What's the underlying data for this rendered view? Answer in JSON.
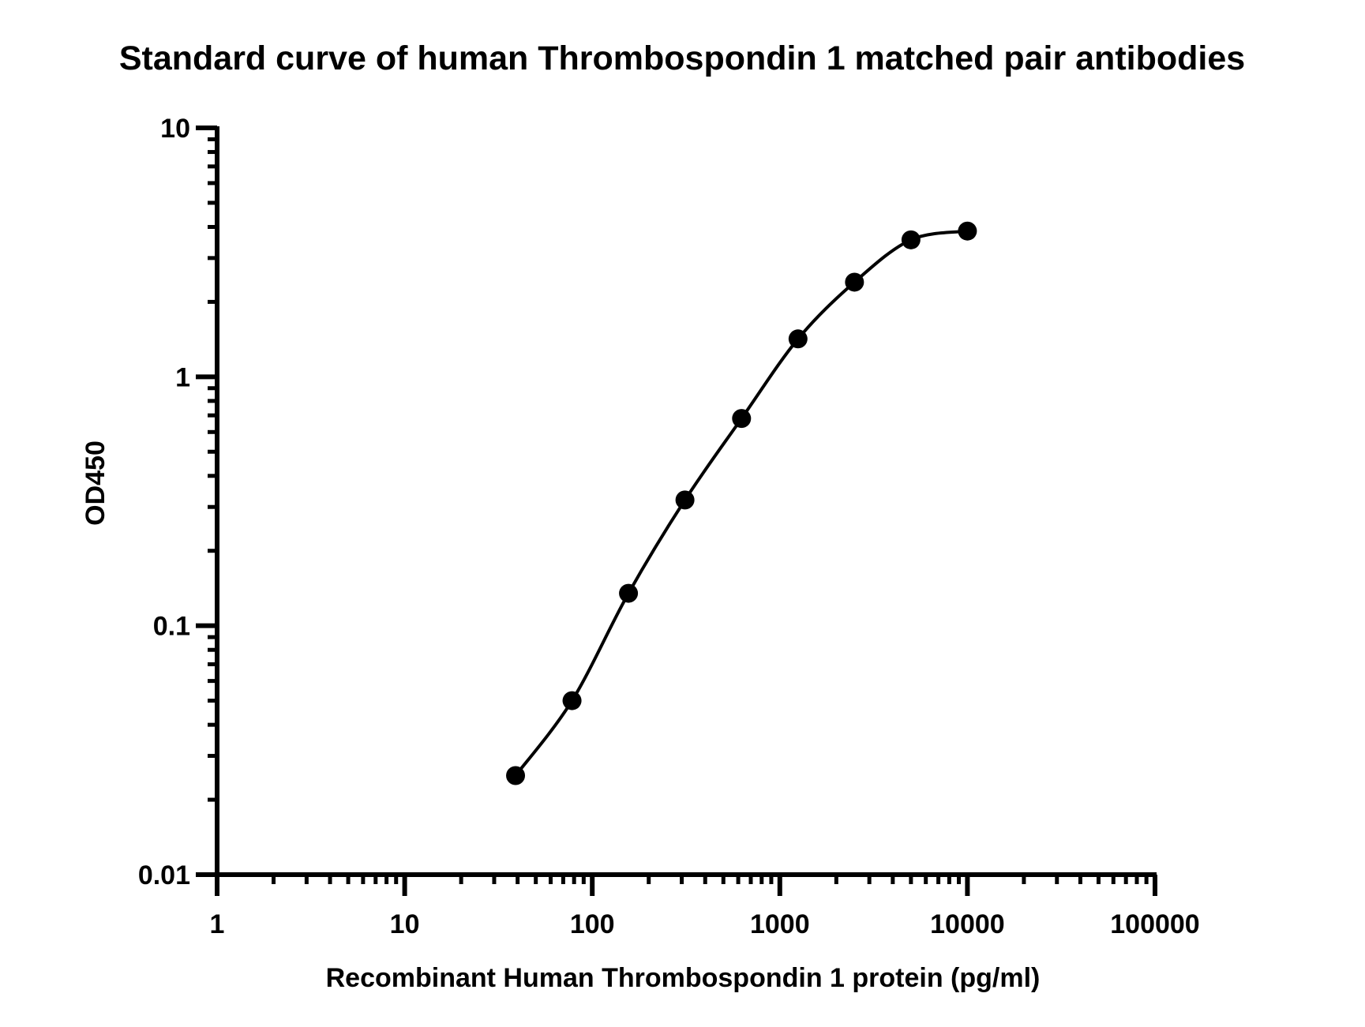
{
  "chart_data": {
    "type": "scatter",
    "title": "Standard curve of human Thrombospondin 1 matched pair antibodies",
    "xlabel": "Recombinant Human Thrombospondin 1 protein (pg/ml)",
    "ylabel": "OD450",
    "xscale": "log",
    "yscale": "log",
    "xlim": [
      1,
      100000
    ],
    "ylim": [
      0.01,
      10
    ],
    "x_ticks": [
      {
        "value": 1,
        "label": "1"
      },
      {
        "value": 10,
        "label": "10"
      },
      {
        "value": 100,
        "label": "100"
      },
      {
        "value": 1000,
        "label": "1000"
      },
      {
        "value": 10000,
        "label": "10000"
      },
      {
        "value": 100000,
        "label": "100000"
      }
    ],
    "y_ticks": [
      {
        "value": 0.01,
        "label": "0.01"
      },
      {
        "value": 0.1,
        "label": "0.1"
      },
      {
        "value": 1,
        "label": "1"
      },
      {
        "value": 10,
        "label": "10"
      }
    ],
    "grid": false,
    "legend": "none",
    "marker_color": "#000000",
    "line_color": "#000000",
    "series": [
      {
        "marker": "filled-circle",
        "fit_line": "smooth curve through points",
        "x": [
          39,
          78,
          156,
          312,
          625,
          1250,
          2500,
          5000,
          10000
        ],
        "y": [
          0.025,
          0.05,
          0.135,
          0.32,
          0.68,
          1.42,
          2.4,
          3.55,
          3.85
        ]
      }
    ]
  }
}
